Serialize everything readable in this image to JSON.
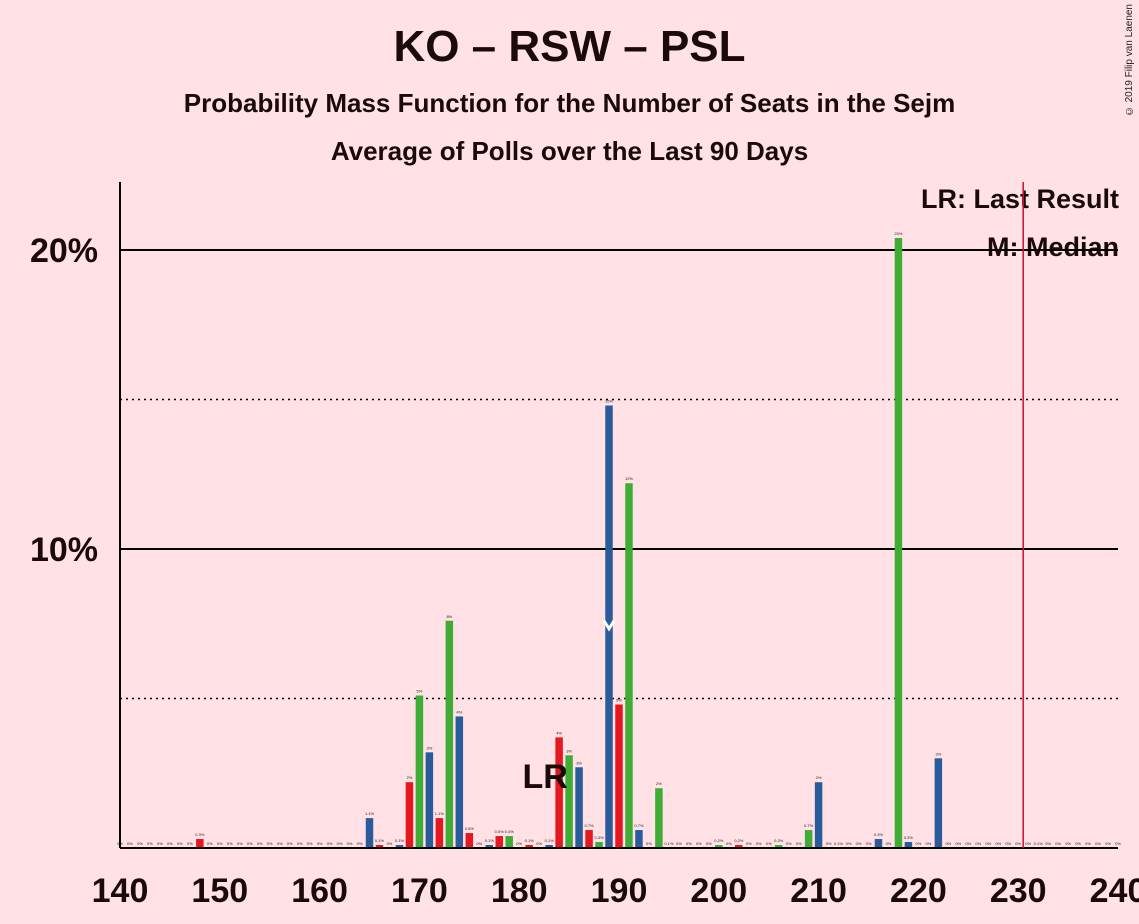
{
  "title": "KO – RSW – PSL",
  "subtitle": "Probability Mass Function for the Number of Seats in the Sejm",
  "subtitle2": "Average of Polls over the Last 90 Days",
  "copyright": "© 2019 Filip van Laenen",
  "legend": {
    "lr": "LR: Last Result",
    "m": "M: Median"
  },
  "lr_marker_label": "LR",
  "colors": {
    "background": "#ffe1e6",
    "blue": "#2a5b9a",
    "red": "#e5171f",
    "green": "#3fad35",
    "majority_line": "#c8102e"
  },
  "chart_data": {
    "type": "bar",
    "xlim": [
      140,
      240
    ],
    "ylim": [
      0,
      22
    ],
    "x_ticks": [
      140,
      150,
      160,
      170,
      180,
      190,
      200,
      210,
      220,
      230,
      240
    ],
    "y_ticks_labeled": [
      {
        "value": 10,
        "label": "10%"
      },
      {
        "value": 20,
        "label": "20%"
      }
    ],
    "y_grid_dotted": [
      5,
      15
    ],
    "last_result_seat": 183,
    "median_seat": 189,
    "majority_seat": 230.5,
    "bars": [
      {
        "x": 140,
        "value": 0,
        "label": "0%",
        "color": "blue"
      },
      {
        "x": 141,
        "value": 0,
        "label": "0%",
        "color": "blue"
      },
      {
        "x": 142,
        "value": 0,
        "label": "0%",
        "color": "blue"
      },
      {
        "x": 143,
        "value": 0,
        "label": "0%",
        "color": "blue"
      },
      {
        "x": 144,
        "value": 0,
        "label": "0%",
        "color": "blue"
      },
      {
        "x": 145,
        "value": 0,
        "label": "0%",
        "color": "blue"
      },
      {
        "x": 146,
        "value": 0,
        "label": "0%",
        "color": "blue"
      },
      {
        "x": 147,
        "value": 0,
        "label": "0%",
        "color": "blue"
      },
      {
        "x": 148,
        "value": 0.3,
        "label": "0.3%",
        "color": "red"
      },
      {
        "x": 149,
        "value": 0,
        "label": "0%",
        "color": "blue"
      },
      {
        "x": 150,
        "value": 0,
        "label": "0%",
        "color": "blue"
      },
      {
        "x": 151,
        "value": 0,
        "label": "0%",
        "color": "blue"
      },
      {
        "x": 152,
        "value": 0,
        "label": "0%",
        "color": "blue"
      },
      {
        "x": 153,
        "value": 0,
        "label": "0%",
        "color": "blue"
      },
      {
        "x": 154,
        "value": 0,
        "label": "0%",
        "color": "blue"
      },
      {
        "x": 155,
        "value": 0,
        "label": "0%",
        "color": "blue"
      },
      {
        "x": 156,
        "value": 0,
        "label": "0%",
        "color": "blue"
      },
      {
        "x": 157,
        "value": 0,
        "label": "0%",
        "color": "blue"
      },
      {
        "x": 158,
        "value": 0,
        "label": "0%",
        "color": "blue"
      },
      {
        "x": 159,
        "value": 0,
        "label": "0%",
        "color": "blue"
      },
      {
        "x": 160,
        "value": 0,
        "label": "0%",
        "color": "blue"
      },
      {
        "x": 161,
        "value": 0,
        "label": "0%",
        "color": "blue"
      },
      {
        "x": 162,
        "value": 0,
        "label": "0%",
        "color": "blue"
      },
      {
        "x": 163,
        "value": 0,
        "label": "0%",
        "color": "blue"
      },
      {
        "x": 164,
        "value": 0,
        "label": "0%",
        "color": "blue"
      },
      {
        "x": 165,
        "value": 1.0,
        "label": "1.1%",
        "color": "blue"
      },
      {
        "x": 166,
        "value": 0.1,
        "label": "0.1%",
        "color": "red"
      },
      {
        "x": 167,
        "value": 0,
        "label": "0%",
        "color": "green"
      },
      {
        "x": 168,
        "value": 0.1,
        "label": "0.1%",
        "color": "blue"
      },
      {
        "x": 169,
        "value": 2.2,
        "label": "2%",
        "color": "red"
      },
      {
        "x": 170,
        "value": 5.1,
        "label": "5%",
        "color": "green"
      },
      {
        "x": 171,
        "value": 3.2,
        "label": "3%",
        "color": "blue"
      },
      {
        "x": 172,
        "value": 1.0,
        "label": "1.1%",
        "color": "red"
      },
      {
        "x": 173,
        "value": 7.6,
        "label": "8%",
        "color": "green"
      },
      {
        "x": 174,
        "value": 4.4,
        "label": "4%",
        "color": "blue"
      },
      {
        "x": 175,
        "value": 0.5,
        "label": "0.5%",
        "color": "red"
      },
      {
        "x": 176,
        "value": 0,
        "label": "0%",
        "color": "green"
      },
      {
        "x": 177,
        "value": 0.1,
        "label": "0.1%",
        "color": "blue"
      },
      {
        "x": 178,
        "value": 0.4,
        "label": "0.5%",
        "color": "red"
      },
      {
        "x": 179,
        "value": 0.4,
        "label": "0.4%",
        "color": "green"
      },
      {
        "x": 180,
        "value": 0,
        "label": "0%",
        "color": "blue"
      },
      {
        "x": 181,
        "value": 0.1,
        "label": "0.1%",
        "color": "red"
      },
      {
        "x": 182,
        "value": 0,
        "label": "0%",
        "color": "green"
      },
      {
        "x": 183,
        "value": 0.1,
        "label": "0.1%",
        "color": "blue"
      },
      {
        "x": 184,
        "value": 3.7,
        "label": "4%",
        "color": "red"
      },
      {
        "x": 185,
        "value": 3.1,
        "label": "3%",
        "color": "green"
      },
      {
        "x": 186,
        "value": 2.7,
        "label": "3%",
        "color": "blue"
      },
      {
        "x": 187,
        "value": 0.6,
        "label": "0.7%",
        "color": "red"
      },
      {
        "x": 188,
        "value": 0.2,
        "label": "0.3%",
        "color": "green"
      },
      {
        "x": 189,
        "value": 14.8,
        "label": "15%",
        "color": "blue"
      },
      {
        "x": 190,
        "value": 4.8,
        "label": "5%",
        "color": "red"
      },
      {
        "x": 191,
        "value": 12.2,
        "label": "12%",
        "color": "green"
      },
      {
        "x": 192,
        "value": 0.6,
        "label": "0.7%",
        "color": "blue"
      },
      {
        "x": 193,
        "value": 0,
        "label": "0%",
        "color": "red"
      },
      {
        "x": 194,
        "value": 2.0,
        "label": "2%",
        "color": "green"
      },
      {
        "x": 195,
        "value": 0,
        "label": "0.1%",
        "color": "blue"
      },
      {
        "x": 196,
        "value": 0,
        "label": "0%",
        "color": "red"
      },
      {
        "x": 197,
        "value": 0,
        "label": "0%",
        "color": "green"
      },
      {
        "x": 198,
        "value": 0,
        "label": "0%",
        "color": "blue"
      },
      {
        "x": 199,
        "value": 0,
        "label": "0%",
        "color": "red"
      },
      {
        "x": 200,
        "value": 0.1,
        "label": "0.2%",
        "color": "green"
      },
      {
        "x": 201,
        "value": 0,
        "label": "0%",
        "color": "blue"
      },
      {
        "x": 202,
        "value": 0.1,
        "label": "0.2%",
        "color": "red"
      },
      {
        "x": 203,
        "value": 0,
        "label": "0%",
        "color": "green"
      },
      {
        "x": 204,
        "value": 0,
        "label": "0%",
        "color": "blue"
      },
      {
        "x": 205,
        "value": 0,
        "label": "0%",
        "color": "red"
      },
      {
        "x": 206,
        "value": 0.1,
        "label": "0.2%",
        "color": "green"
      },
      {
        "x": 207,
        "value": 0,
        "label": "0%",
        "color": "blue"
      },
      {
        "x": 208,
        "value": 0,
        "label": "0%",
        "color": "red"
      },
      {
        "x": 209,
        "value": 0.6,
        "label": "0.7%",
        "color": "green"
      },
      {
        "x": 210,
        "value": 2.2,
        "label": "2%",
        "color": "blue"
      },
      {
        "x": 211,
        "value": 0,
        "label": "0%",
        "color": "red"
      },
      {
        "x": 212,
        "value": 0,
        "label": "0.1%",
        "color": "green"
      },
      {
        "x": 213,
        "value": 0,
        "label": "0%",
        "color": "blue"
      },
      {
        "x": 214,
        "value": 0,
        "label": "0%",
        "color": "red"
      },
      {
        "x": 215,
        "value": 0,
        "label": "0%",
        "color": "green"
      },
      {
        "x": 216,
        "value": 0.3,
        "label": "0.3%",
        "color": "blue"
      },
      {
        "x": 217,
        "value": 0,
        "label": "0%",
        "color": "red"
      },
      {
        "x": 218,
        "value": 20.4,
        "label": "20%",
        "color": "green"
      },
      {
        "x": 219,
        "value": 0.2,
        "label": "0.3%",
        "color": "blue"
      },
      {
        "x": 220,
        "value": 0,
        "label": "0%",
        "color": "red"
      },
      {
        "x": 221,
        "value": 0,
        "label": "0%",
        "color": "green"
      },
      {
        "x": 222,
        "value": 3.0,
        "label": "3%",
        "color": "blue"
      },
      {
        "x": 223,
        "value": 0,
        "label": "0%",
        "color": "red"
      },
      {
        "x": 224,
        "value": 0,
        "label": "0%",
        "color": "green"
      },
      {
        "x": 225,
        "value": 0,
        "label": "0%",
        "color": "blue"
      },
      {
        "x": 226,
        "value": 0,
        "label": "0%",
        "color": "red"
      },
      {
        "x": 227,
        "value": 0,
        "label": "0%",
        "color": "green"
      },
      {
        "x": 228,
        "value": 0,
        "label": "0%",
        "color": "blue"
      },
      {
        "x": 229,
        "value": 0,
        "label": "0%",
        "color": "red"
      },
      {
        "x": 230,
        "value": 0,
        "label": "0%",
        "color": "green"
      },
      {
        "x": 231,
        "value": 0,
        "label": "0%",
        "color": "blue"
      },
      {
        "x": 232,
        "value": 0,
        "label": "0.1%",
        "color": "red"
      },
      {
        "x": 233,
        "value": 0,
        "label": "0%",
        "color": "green"
      },
      {
        "x": 234,
        "value": 0,
        "label": "0%",
        "color": "blue"
      },
      {
        "x": 235,
        "value": 0,
        "label": "0%",
        "color": "red"
      },
      {
        "x": 236,
        "value": 0,
        "label": "0%",
        "color": "green"
      },
      {
        "x": 237,
        "value": 0,
        "label": "0%",
        "color": "blue"
      },
      {
        "x": 238,
        "value": 0,
        "label": "0%",
        "color": "red"
      },
      {
        "x": 239,
        "value": 0,
        "label": "0%",
        "color": "green"
      },
      {
        "x": 240,
        "value": 0,
        "label": "0%",
        "color": "blue"
      }
    ]
  }
}
